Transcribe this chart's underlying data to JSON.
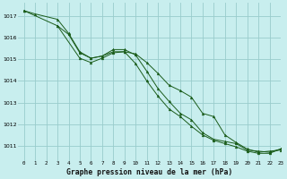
{
  "title": "Graphe pression niveau de la mer (hPa)",
  "bg_color": "#c8eeee",
  "grid_color": "#99cccc",
  "line_color": "#1a5c1a",
  "xlim": [
    -0.5,
    23
  ],
  "ylim": [
    1010.3,
    1017.6
  ],
  "yticks": [
    1011,
    1012,
    1013,
    1014,
    1015,
    1016,
    1017
  ],
  "xticks": [
    0,
    1,
    2,
    3,
    4,
    5,
    6,
    7,
    8,
    9,
    10,
    11,
    12,
    13,
    14,
    15,
    16,
    17,
    18,
    19,
    20,
    21,
    22,
    23
  ],
  "line1_x": [
    0,
    1,
    3,
    4,
    5,
    6,
    7,
    8,
    9,
    10,
    11,
    12,
    13,
    14,
    15,
    16,
    17,
    18,
    19,
    20,
    21,
    22,
    23
  ],
  "line1_y": [
    1017.25,
    1017.1,
    1016.85,
    1016.2,
    1015.35,
    1015.05,
    1015.15,
    1015.35,
    1015.35,
    1015.25,
    1014.85,
    1014.35,
    1013.8,
    1013.55,
    1013.25,
    1012.5,
    1012.35,
    1011.5,
    1011.15,
    1010.85,
    1010.7,
    1010.75,
    1010.8
  ],
  "line2_x": [
    0,
    3,
    4,
    5,
    6,
    7,
    8,
    9,
    10,
    11,
    12,
    13,
    14,
    15,
    16,
    17,
    18,
    19,
    20,
    21,
    22,
    23
  ],
  "line2_y": [
    1017.25,
    1016.55,
    1016.15,
    1015.3,
    1015.05,
    1015.15,
    1015.45,
    1015.45,
    1015.2,
    1014.45,
    1013.65,
    1013.05,
    1012.5,
    1012.2,
    1011.6,
    1011.3,
    1011.2,
    1011.1,
    1010.8,
    1010.75,
    1010.7,
    1010.85
  ],
  "line3_x": [
    3,
    5,
    6,
    7,
    8,
    9,
    10,
    11,
    12,
    13,
    14,
    15,
    16,
    17,
    18,
    19,
    20,
    21,
    22,
    23
  ],
  "line3_y": [
    1016.55,
    1015.05,
    1014.85,
    1015.05,
    1015.3,
    1015.35,
    1014.8,
    1014.0,
    1013.3,
    1012.7,
    1012.35,
    1011.9,
    1011.5,
    1011.25,
    1011.1,
    1010.95,
    1010.75,
    1010.65,
    1010.65,
    1010.85
  ]
}
